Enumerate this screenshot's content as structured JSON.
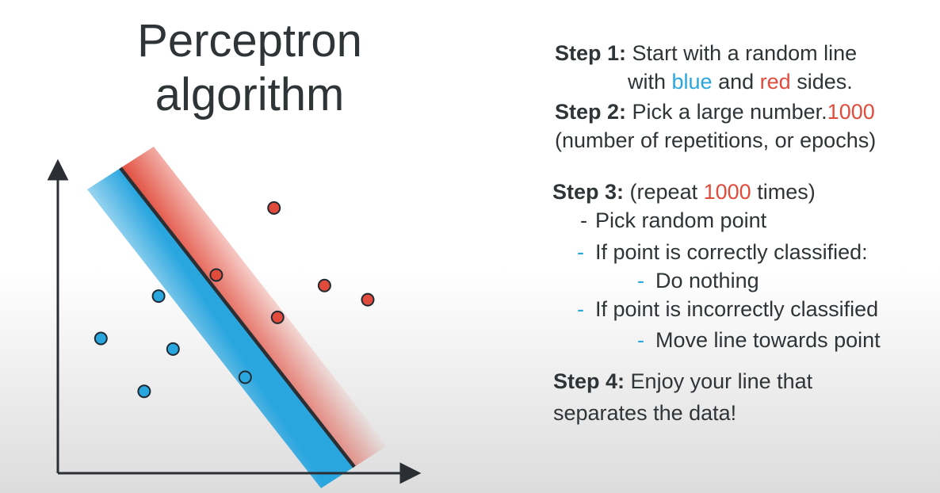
{
  "title": {
    "line1": "Perceptron",
    "line2": "algorithm"
  },
  "colors": {
    "blue": "#2aa6df",
    "red": "#e14b3b",
    "text": "#2f3437",
    "line": "#2b2e33"
  },
  "steps": {
    "step1": {
      "label": "Step 1:",
      "text_a": "Start with a random line",
      "text_b_pre": "with",
      "blue_word": "blue",
      "text_b_mid": "and",
      "red_word": "red",
      "text_b_post": "sides."
    },
    "step2": {
      "label": "Step 2:",
      "text": "Pick a large number.",
      "number": "1000",
      "note": "(number of repetitions, or epochs)"
    },
    "step3": {
      "label": "Step 3:",
      "pre": "(repeat",
      "number": "1000",
      "post": "times)",
      "items": [
        {
          "dash": "-",
          "text": "Pick random point"
        },
        {
          "dash": "-",
          "text": "If point is correctly classified:"
        },
        {
          "dash": "-",
          "text": "Do nothing"
        },
        {
          "dash": "-",
          "text": "If point is incorrectly classified"
        },
        {
          "dash": "-",
          "text": "Move line towards point"
        }
      ]
    },
    "step4": {
      "label": "Step 4:",
      "text_a": "Enjoy your line that",
      "text_b": "separates the data!"
    }
  },
  "points": {
    "blue": [
      {
        "x": 2.2,
        "y": 4.3
      },
      {
        "x": 0.6,
        "y": 3.1
      },
      {
        "x": 2.6,
        "y": 2.8
      },
      {
        "x": 1.8,
        "y": 1.6
      },
      {
        "x": 4.6,
        "y": 2.0
      }
    ],
    "red": [
      {
        "x": 5.4,
        "y": 6.8
      },
      {
        "x": 3.8,
        "y": 4.9
      },
      {
        "x": 6.8,
        "y": 4.6
      },
      {
        "x": 8.0,
        "y": 4.2
      },
      {
        "x": 5.5,
        "y": 3.7
      }
    ]
  }
}
